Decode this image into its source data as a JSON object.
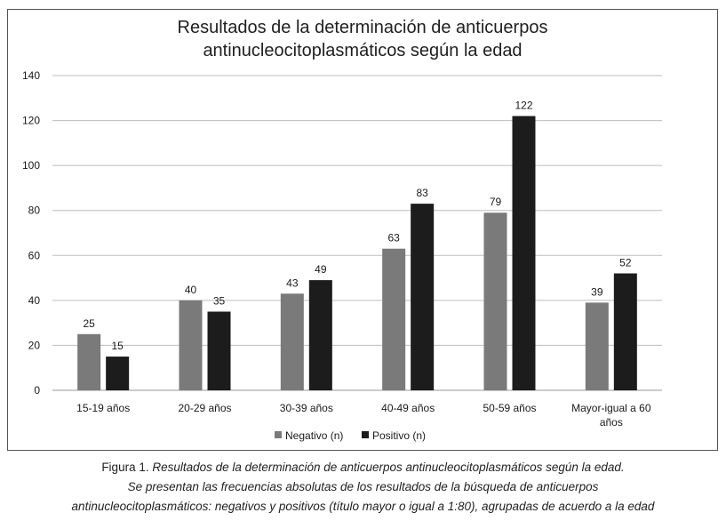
{
  "chart_data": {
    "type": "bar",
    "title_lines": [
      "Resultados de la determinación de anticuerpos",
      "antinucleocitoplasmáticos según la edad"
    ],
    "categories": [
      [
        "15-19 años"
      ],
      [
        "20-29 años"
      ],
      [
        "30-39 años"
      ],
      [
        "40-49 años"
      ],
      [
        "50-59 años"
      ],
      [
        "Mayor-igual a 60",
        "años"
      ]
    ],
    "series": [
      {
        "name": "Negativo (n)",
        "color": "#7a7a7a",
        "values": [
          25,
          40,
          43,
          63,
          79,
          39
        ]
      },
      {
        "name": "Positivo (n)",
        "color": "#1c1c1c",
        "values": [
          15,
          35,
          49,
          83,
          122,
          52
        ]
      }
    ],
    "ylim": [
      0,
      140
    ],
    "yticks": [
      0,
      20,
      40,
      60,
      80,
      100,
      120,
      140
    ],
    "grid": true,
    "legend_position": "bottom-center",
    "data_labels": true
  },
  "caption": {
    "line1_prefix": "Figura 1. ",
    "line1_italic": "Resultados de la determinación de anticuerpos antinucleocitoplasmáticos según la edad.",
    "line2": "Se presentan las frecuencias absolutas de los resultados de la búsqueda de anticuerpos",
    "line3": "antinucleocitoplasmáticos: negativos y positivos (título mayor o igual a 1:80), agrupadas de acuerdo a la edad"
  }
}
